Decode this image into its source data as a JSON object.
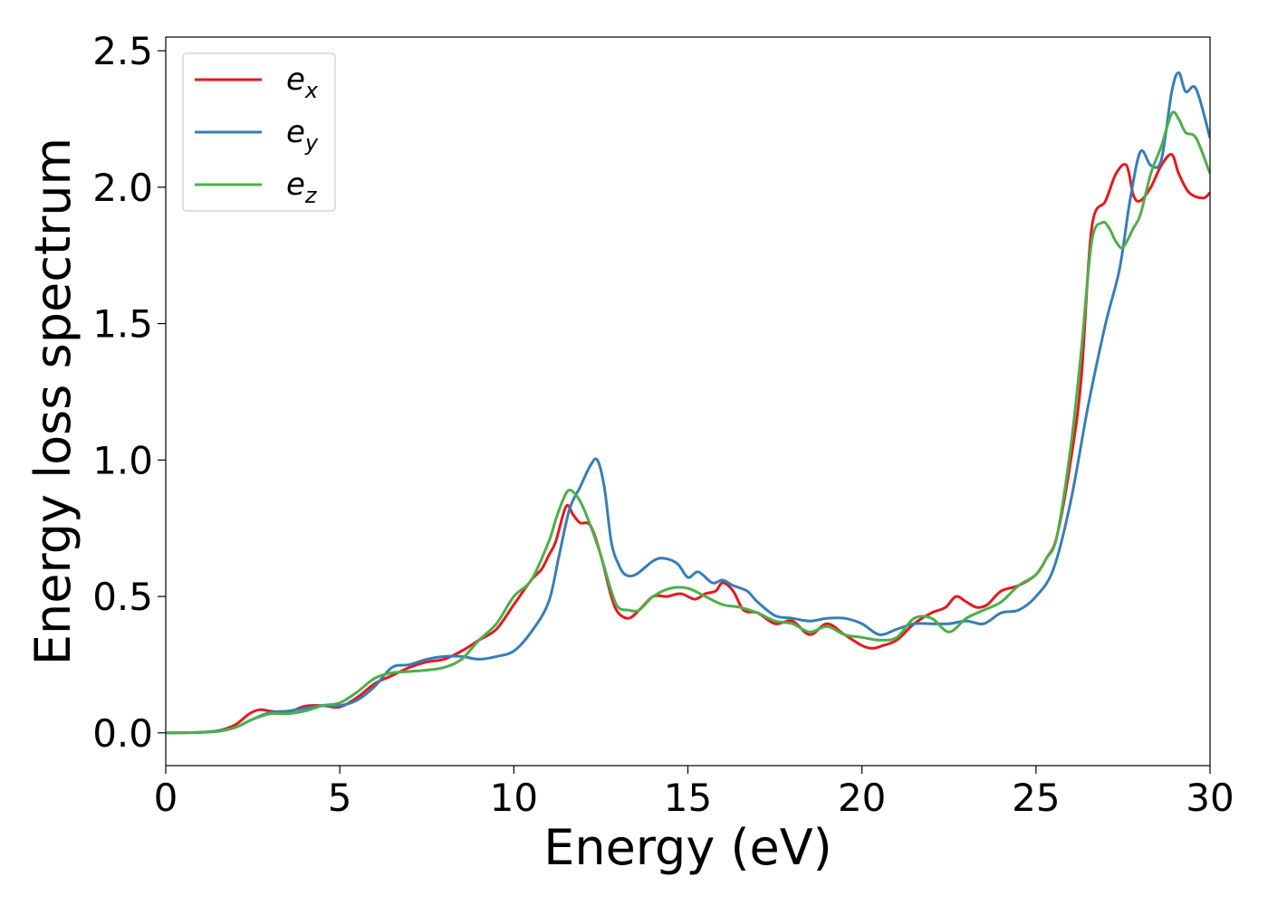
{
  "chart_data": {
    "type": "line",
    "xlabel": "Energy (eV)",
    "ylabel": "Energy loss spectrum",
    "xlim": [
      0,
      30
    ],
    "ylim": [
      -0.12,
      2.55
    ],
    "xticks": [
      0,
      5,
      10,
      15,
      20,
      25,
      30
    ],
    "xtick_labels": [
      "0",
      "5",
      "10",
      "15",
      "20",
      "25",
      "30"
    ],
    "yticks": [
      0.0,
      0.5,
      1.0,
      1.5,
      2.0,
      2.5
    ],
    "ytick_labels": [
      "0.0",
      "0.5",
      "1.0",
      "1.5",
      "2.0",
      "2.5"
    ],
    "grid": false,
    "legend_position": "top-left",
    "series": [
      {
        "name_base": "e",
        "name_sub": "x",
        "color": "#e41a1c",
        "x": [
          0,
          1,
          1.5,
          2,
          2.4,
          2.7,
          3.0,
          3.5,
          4.0,
          4.5,
          5.0,
          5.5,
          6.0,
          6.5,
          7.0,
          7.5,
          8.0,
          8.5,
          9.0,
          9.5,
          10.0,
          10.5,
          10.8,
          11.0,
          11.2,
          11.5,
          11.7,
          11.9,
          12.2,
          12.5,
          12.8,
          13.0,
          13.3,
          13.6,
          14.0,
          14.4,
          14.8,
          15.2,
          15.5,
          15.8,
          16.0,
          16.3,
          16.6,
          17.0,
          17.5,
          18.0,
          18.5,
          19.0,
          19.5,
          20.0,
          20.3,
          20.6,
          21.0,
          21.5,
          22.0,
          22.4,
          22.7,
          23.0,
          23.3,
          23.6,
          24.0,
          24.5,
          25.0,
          25.3,
          25.6,
          26.0,
          26.3,
          26.6,
          27.0,
          27.3,
          27.6,
          27.8,
          28.0,
          28.3,
          28.6,
          28.9,
          29.1,
          29.4,
          29.8,
          30.0
        ],
        "values": [
          0.0,
          0.002,
          0.008,
          0.03,
          0.07,
          0.085,
          0.08,
          0.075,
          0.098,
          0.1,
          0.095,
          0.13,
          0.18,
          0.21,
          0.24,
          0.26,
          0.27,
          0.3,
          0.34,
          0.38,
          0.47,
          0.56,
          0.6,
          0.65,
          0.7,
          0.83,
          0.8,
          0.77,
          0.76,
          0.65,
          0.5,
          0.44,
          0.42,
          0.45,
          0.5,
          0.5,
          0.51,
          0.49,
          0.51,
          0.52,
          0.55,
          0.52,
          0.45,
          0.44,
          0.4,
          0.41,
          0.36,
          0.4,
          0.36,
          0.32,
          0.31,
          0.32,
          0.34,
          0.4,
          0.44,
          0.46,
          0.5,
          0.48,
          0.46,
          0.47,
          0.52,
          0.54,
          0.58,
          0.64,
          0.72,
          1.0,
          1.3,
          1.85,
          1.95,
          2.05,
          2.08,
          1.97,
          1.95,
          2.0,
          2.08,
          2.12,
          2.05,
          1.98,
          1.96,
          1.98
        ]
      },
      {
        "name_base": "e",
        "name_sub": "y",
        "color": "#377eb8",
        "x": [
          0,
          1,
          1.5,
          2,
          2.5,
          3.0,
          3.5,
          4.0,
          4.5,
          5.0,
          5.5,
          6.0,
          6.5,
          7.0,
          7.5,
          8.0,
          8.5,
          9.0,
          9.5,
          10.0,
          10.5,
          11.0,
          11.3,
          11.6,
          11.9,
          12.2,
          12.4,
          12.6,
          12.8,
          13.0,
          13.2,
          13.5,
          14.0,
          14.3,
          14.7,
          15.0,
          15.3,
          15.7,
          16.0,
          16.3,
          16.7,
          17.0,
          17.5,
          18.0,
          18.5,
          19.0,
          19.5,
          20.0,
          20.5,
          21.0,
          21.5,
          22.0,
          22.5,
          23.0,
          23.5,
          24.0,
          24.5,
          25.0,
          25.5,
          26.0,
          26.5,
          27.0,
          27.4,
          27.7,
          28.0,
          28.3,
          28.6,
          28.9,
          29.1,
          29.3,
          29.6,
          30.0
        ],
        "values": [
          0.0,
          0.002,
          0.008,
          0.02,
          0.05,
          0.075,
          0.08,
          0.09,
          0.1,
          0.1,
          0.12,
          0.17,
          0.24,
          0.25,
          0.27,
          0.28,
          0.28,
          0.27,
          0.28,
          0.3,
          0.37,
          0.48,
          0.65,
          0.82,
          0.9,
          0.98,
          1.0,
          0.9,
          0.7,
          0.62,
          0.58,
          0.58,
          0.63,
          0.64,
          0.62,
          0.57,
          0.59,
          0.55,
          0.56,
          0.54,
          0.52,
          0.48,
          0.43,
          0.42,
          0.41,
          0.42,
          0.42,
          0.4,
          0.36,
          0.38,
          0.4,
          0.4,
          0.4,
          0.41,
          0.4,
          0.44,
          0.45,
          0.5,
          0.6,
          0.85,
          1.2,
          1.5,
          1.7,
          1.95,
          2.13,
          2.08,
          2.1,
          2.35,
          2.42,
          2.35,
          2.36,
          2.18
        ]
      },
      {
        "name_base": "e",
        "name_sub": "z",
        "color": "#4daf4a",
        "x": [
          0,
          1,
          1.5,
          2,
          2.5,
          3.0,
          3.5,
          4.0,
          4.5,
          5.0,
          5.5,
          6.0,
          6.5,
          7.0,
          7.5,
          8.0,
          8.5,
          9.0,
          9.5,
          10.0,
          10.5,
          11.0,
          11.2,
          11.4,
          11.6,
          11.9,
          12.2,
          12.5,
          12.8,
          13.0,
          13.3,
          13.6,
          14.0,
          14.5,
          15.0,
          15.5,
          16.0,
          16.5,
          17.0,
          17.5,
          18.0,
          18.5,
          19.0,
          19.5,
          20.0,
          20.5,
          21.0,
          21.5,
          22.0,
          22.5,
          23.0,
          23.5,
          24.0,
          24.5,
          25.0,
          25.3,
          25.6,
          26.0,
          26.3,
          26.6,
          26.9,
          27.1,
          27.3,
          27.5,
          27.8,
          28.0,
          28.3,
          28.6,
          28.9,
          29.1,
          29.3,
          29.6,
          30.0
        ],
        "values": [
          0.0,
          0.002,
          0.005,
          0.02,
          0.05,
          0.07,
          0.07,
          0.08,
          0.1,
          0.11,
          0.15,
          0.2,
          0.22,
          0.225,
          0.23,
          0.24,
          0.27,
          0.34,
          0.4,
          0.5,
          0.56,
          0.7,
          0.78,
          0.85,
          0.89,
          0.85,
          0.76,
          0.65,
          0.52,
          0.46,
          0.45,
          0.45,
          0.5,
          0.53,
          0.53,
          0.5,
          0.47,
          0.46,
          0.44,
          0.41,
          0.4,
          0.37,
          0.39,
          0.36,
          0.35,
          0.34,
          0.35,
          0.42,
          0.42,
          0.37,
          0.42,
          0.45,
          0.48,
          0.54,
          0.58,
          0.64,
          0.72,
          1.05,
          1.4,
          1.8,
          1.87,
          1.85,
          1.8,
          1.78,
          1.85,
          1.9,
          2.05,
          2.15,
          2.27,
          2.25,
          2.2,
          2.18,
          2.05
        ]
      }
    ]
  }
}
